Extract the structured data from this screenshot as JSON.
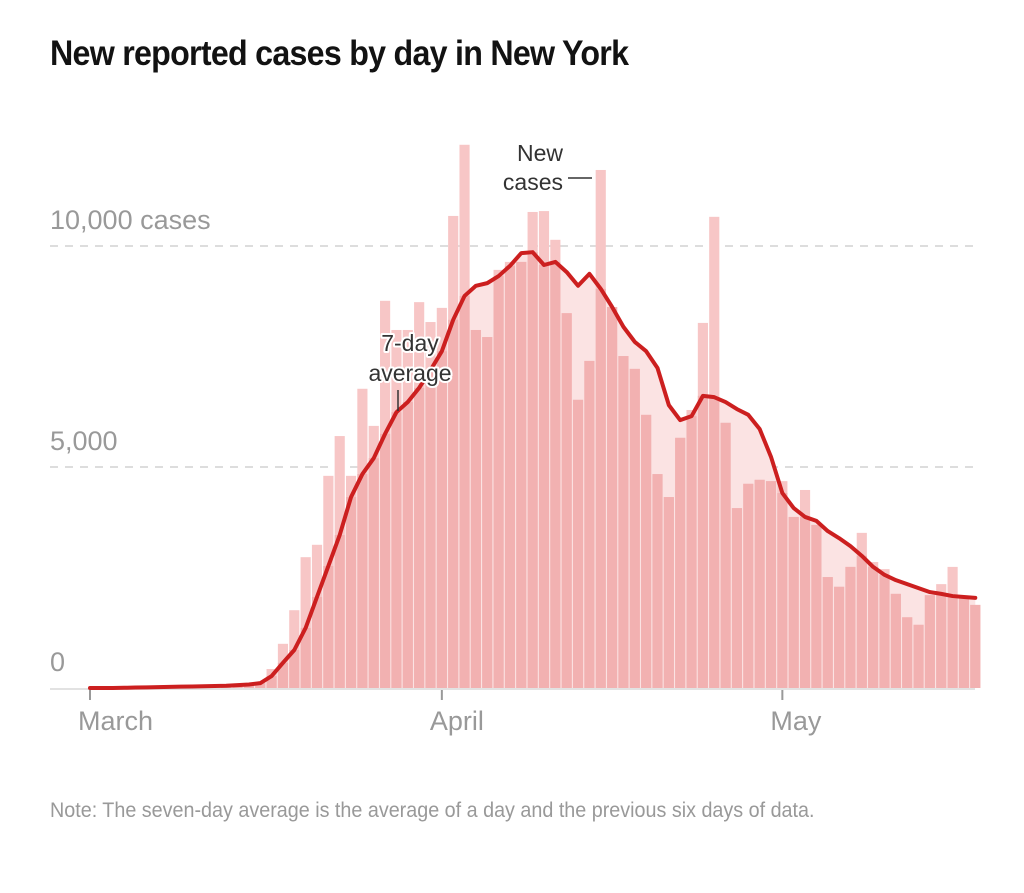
{
  "chart_data": {
    "type": "bar",
    "title": "New reported cases by day in New York",
    "xlabel": "",
    "ylabel": "",
    "ylim": [
      0,
      12500
    ],
    "grid": true,
    "y_ticks": [
      {
        "value": 0,
        "label": "0"
      },
      {
        "value": 5000,
        "label": "5,000"
      },
      {
        "value": 10000,
        "label": "10,000 cases"
      }
    ],
    "x_ticks": [
      {
        "day": 0,
        "label": "March"
      },
      {
        "day": 31,
        "label": "April"
      },
      {
        "day": 61,
        "label": "May"
      }
    ],
    "x_start_label": "Mar 1",
    "series": [
      {
        "name": "New cases",
        "type": "bar",
        "color": "#f6c3c3",
        "start_day": 0,
        "values": [
          0,
          0,
          0,
          0,
          0,
          0,
          0,
          0,
          0,
          0,
          0,
          0,
          50,
          100,
          80,
          120,
          430,
          1000,
          1760,
          2960,
          3240,
          4800,
          5700,
          4800,
          6770,
          5930,
          8760,
          8100,
          8100,
          8730,
          8280,
          8600,
          10680,
          12290,
          8100,
          7940,
          9460,
          9640,
          9640,
          10770,
          10790,
          10140,
          8480,
          6520,
          7400,
          11720,
          8620,
          7510,
          7220,
          6180,
          4840,
          4320,
          5660,
          6290,
          8260,
          10660,
          6000,
          4070,
          4620,
          4710,
          4680,
          4680,
          3870,
          4480,
          3690,
          2510,
          2290,
          2740,
          3510,
          2850,
          2690,
          2130,
          1600,
          1430,
          2100,
          2350,
          2740,
          2060,
          1880
        ]
      },
      {
        "name": "7-day average",
        "type": "line",
        "color": "#cc1f1f",
        "start_day": 0,
        "values": [
          0,
          0,
          0,
          5,
          10,
          15,
          20,
          25,
          30,
          35,
          40,
          45,
          50,
          65,
          80,
          110,
          270,
          570,
          860,
          1360,
          2060,
          2760,
          3460,
          4320,
          4840,
          5200,
          5750,
          6240,
          6470,
          6790,
          7190,
          7620,
          8330,
          8870,
          9100,
          9160,
          9320,
          9550,
          9840,
          9860,
          9570,
          9640,
          9410,
          9100,
          9370,
          9030,
          8620,
          8170,
          7830,
          7620,
          7240,
          6400,
          6060,
          6150,
          6610,
          6580,
          6470,
          6310,
          6180,
          5860,
          5230,
          4410,
          4070,
          3870,
          3780,
          3550,
          3390,
          3210,
          2990,
          2740,
          2560,
          2440,
          2350,
          2260,
          2170,
          2130,
          2080,
          2060,
          2040
        ]
      }
    ],
    "annotations": [
      {
        "label_lines": [
          "New",
          "cases"
        ],
        "target": "New cases"
      },
      {
        "label_lines": [
          "7-day",
          "average"
        ],
        "target": "7-day average"
      }
    ],
    "note": "Note: The seven-day average is the average of a day and the previous six days of data."
  }
}
